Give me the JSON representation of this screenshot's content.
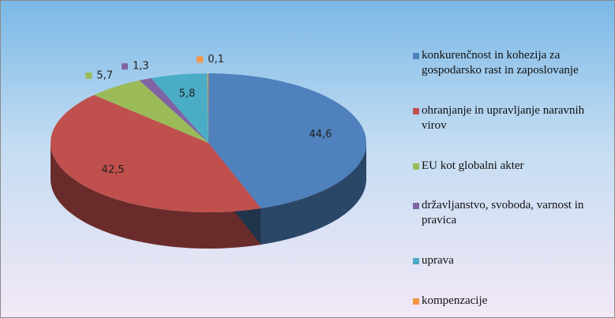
{
  "chart_data": {
    "type": "pie",
    "categories": [
      "konkurenčnost in kohezija za gospodarsko rast in zaposlovanje",
      "ohranjanje in upravljanje naravnih virov",
      "EU kot globalni akter",
      "državljanstvo, svoboda, varnost in pravica",
      "uprava",
      "kompenzacije"
    ],
    "values": [
      44.6,
      42.5,
      5.7,
      1.3,
      5.8,
      0.1
    ],
    "value_labels": [
      "44,6",
      "42,5",
      "5,7",
      "1,3",
      "5,8",
      "0,1"
    ],
    "colors": [
      "#4f81bd",
      "#c0504d",
      "#9bbb59",
      "#8064a2",
      "#4bacc6",
      "#f79646"
    ],
    "legend": "right"
  }
}
